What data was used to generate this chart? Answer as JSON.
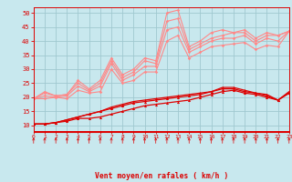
{
  "bg_color": "#c8e8ee",
  "grid_color": "#a0c8d0",
  "line_dark": "#dd0000",
  "line_pink": "#ff8888",
  "xlim": [
    0,
    23
  ],
  "ylim": [
    8,
    52
  ],
  "yticks": [
    10,
    15,
    20,
    25,
    30,
    35,
    40,
    45,
    50
  ],
  "xticks": [
    0,
    1,
    2,
    3,
    4,
    5,
    6,
    7,
    8,
    9,
    10,
    11,
    12,
    13,
    14,
    15,
    16,
    17,
    18,
    19,
    20,
    21,
    22,
    23
  ],
  "xlabel": "Vent moyen/en rafales ( km/h )",
  "dark_lines": [
    [
      10.5,
      10.5,
      11,
      11.5,
      12.5,
      12.5,
      13,
      14,
      15,
      16,
      17,
      17.5,
      18,
      18.5,
      19,
      20,
      21,
      22,
      22.5,
      21.5,
      21,
      20,
      19,
      21.5
    ],
    [
      10.5,
      10.5,
      11,
      12,
      13,
      14,
      15,
      16,
      17,
      18,
      18.5,
      19,
      19.5,
      20,
      20.5,
      21,
      22,
      23,
      23,
      22,
      21.5,
      20.5,
      19,
      21.5
    ],
    [
      10.5,
      10.5,
      11,
      12,
      13,
      14,
      15,
      16.5,
      17.5,
      18.5,
      19,
      19.5,
      20,
      20.5,
      21,
      21.5,
      22,
      23.5,
      23.5,
      22.5,
      21.5,
      21,
      19,
      22
    ]
  ],
  "pink_lines": [
    [
      19.5,
      22,
      20.5,
      21,
      26,
      23,
      26,
      34,
      28,
      30,
      34,
      33,
      50,
      51,
      38,
      40,
      43,
      44,
      43,
      44,
      41,
      43,
      42,
      43.5
    ],
    [
      19.5,
      21.5,
      20.5,
      21,
      25,
      22.5,
      25,
      33,
      27,
      29,
      33,
      32,
      47,
      48,
      37,
      39,
      41,
      42,
      43,
      43,
      40,
      42,
      42,
      43.5
    ],
    [
      19.5,
      20.5,
      20,
      20.5,
      24,
      22,
      24,
      32,
      26,
      28,
      31,
      31,
      44,
      45,
      36,
      38,
      40,
      41,
      41,
      42,
      39,
      41,
      40,
      43.5
    ],
    [
      19.5,
      19.5,
      20,
      19.5,
      22.5,
      21.5,
      22,
      30,
      25,
      26,
      29,
      29,
      40,
      42,
      34,
      36,
      38,
      38.5,
      39,
      39.5,
      37,
      38.5,
      38,
      43.5
    ]
  ]
}
